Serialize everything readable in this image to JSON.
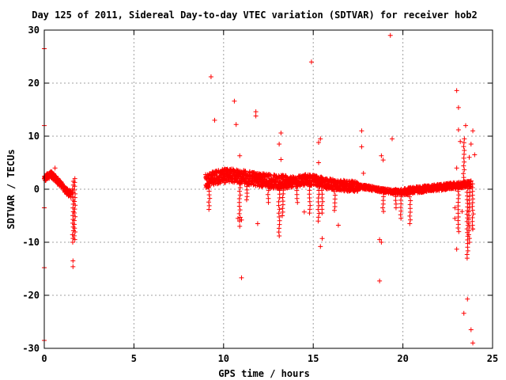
{
  "chart_data": {
    "type": "scatter",
    "title": "Day 125 of 2011, Sidereal Day-to-day VTEC variation (SDTVAR) for receiver hob2",
    "xlabel": "GPS time / hours",
    "ylabel": "SDTVAR / TECUs",
    "xlim": [
      0,
      25
    ],
    "ylim": [
      -30,
      30
    ],
    "xticks": [
      0,
      5,
      10,
      15,
      20,
      25
    ],
    "yticks": [
      -30,
      -20,
      -10,
      0,
      10,
      20,
      30
    ],
    "grid": true,
    "marker": "+",
    "color": "#ff0000",
    "bands": [
      {
        "x": [
          0.0,
          1.5
        ],
        "center": [
          1.8,
          2.5,
          2.8,
          2.2,
          1.5,
          0.8,
          0.0,
          -0.6,
          -1.0
        ],
        "halfwidth": 0.6
      },
      {
        "x": [
          9.0,
          13.5
        ],
        "center": [
          1.5,
          2.2,
          2.5,
          2.6,
          2.4,
          2.0,
          1.8,
          1.6,
          1.4,
          1.3
        ],
        "halfwidth": 1.3
      },
      {
        "x": [
          13.5,
          17.5
        ],
        "center": [
          1.2,
          1.5,
          1.8,
          1.6,
          1.0,
          0.8,
          0.6,
          0.5
        ],
        "halfwidth": 1.0
      },
      {
        "x": [
          17.5,
          20.0
        ],
        "center": [
          0.5,
          0.3,
          0.0,
          -0.3,
          -0.5,
          -0.6
        ],
        "halfwidth": 0.4
      },
      {
        "x": [
          20.0,
          23.8
        ],
        "center": [
          -0.5,
          -0.2,
          0.0,
          0.2,
          0.4,
          0.6,
          0.8,
          1.0
        ],
        "halfwidth": 0.6
      }
    ],
    "spikes": [
      {
        "x": 1.6,
        "y0": 1.5,
        "y1": -10.0
      },
      {
        "x": 1.7,
        "y0": 2.0,
        "y1": -9.5
      },
      {
        "x": 9.2,
        "y0": 1.0,
        "y1": -3.8
      },
      {
        "x": 10.9,
        "y0": 1.0,
        "y1": -6.0
      },
      {
        "x": 11.3,
        "y0": 0.5,
        "y1": -2.0
      },
      {
        "x": 12.5,
        "y0": 0.5,
        "y1": -2.5
      },
      {
        "x": 13.1,
        "y0": 0.5,
        "y1": -8.8
      },
      {
        "x": 13.3,
        "y0": 0.5,
        "y1": -5.0
      },
      {
        "x": 14.1,
        "y0": 0.5,
        "y1": -2.5
      },
      {
        "x": 14.8,
        "y0": 0.5,
        "y1": -4.5
      },
      {
        "x": 15.3,
        "y0": 0.5,
        "y1": -6.0
      },
      {
        "x": 15.5,
        "y0": 0.5,
        "y1": -4.5
      },
      {
        "x": 16.2,
        "y0": 0.3,
        "y1": -4.0
      },
      {
        "x": 18.9,
        "y0": 0.0,
        "y1": -4.2
      },
      {
        "x": 19.6,
        "y0": 0.0,
        "y1": -3.5
      },
      {
        "x": 19.9,
        "y0": 0.0,
        "y1": -5.5
      },
      {
        "x": 20.4,
        "y0": 0.0,
        "y1": -6.5
      },
      {
        "x": 23.1,
        "y0": 1.0,
        "y1": -8.0
      },
      {
        "x": 23.6,
        "y0": 1.5,
        "y1": -13.0
      },
      {
        "x": 23.7,
        "y0": 1.5,
        "y1": -10.0
      },
      {
        "x": 23.9,
        "y0": 1.0,
        "y1": -7.5
      },
      {
        "x": 23.4,
        "y0": 1.5,
        "y1": 9.5
      }
    ],
    "outliers": [
      [
        0.0,
        26.5
      ],
      [
        0.0,
        12.0
      ],
      [
        0.0,
        -3.5
      ],
      [
        0.0,
        -14.8
      ],
      [
        0.0,
        -28.5
      ],
      [
        0.6,
        4.0
      ],
      [
        1.6,
        -13.5
      ],
      [
        1.6,
        -14.6
      ],
      [
        9.3,
        21.2
      ],
      [
        9.5,
        13.0
      ],
      [
        10.6,
        16.6
      ],
      [
        10.7,
        12.2
      ],
      [
        10.9,
        6.3
      ],
      [
        10.8,
        -5.5
      ],
      [
        10.9,
        -7.0
      ],
      [
        11.0,
        -16.7
      ],
      [
        11.0,
        -5.8
      ],
      [
        11.8,
        14.6
      ],
      [
        11.8,
        13.8
      ],
      [
        11.9,
        -6.5
      ],
      [
        13.1,
        8.5
      ],
      [
        13.2,
        10.6
      ],
      [
        13.2,
        5.6
      ],
      [
        14.5,
        -4.3
      ],
      [
        14.9,
        24.0
      ],
      [
        15.3,
        8.8
      ],
      [
        15.4,
        9.5
      ],
      [
        15.5,
        -9.3
      ],
      [
        15.4,
        -10.8
      ],
      [
        15.3,
        5.0
      ],
      [
        16.4,
        -6.8
      ],
      [
        17.7,
        11.0
      ],
      [
        17.7,
        8.0
      ],
      [
        17.8,
        3.0
      ],
      [
        18.8,
        6.3
      ],
      [
        18.9,
        5.5
      ],
      [
        18.7,
        -9.5
      ],
      [
        18.8,
        -10.0
      ],
      [
        18.7,
        -17.3
      ],
      [
        19.3,
        29.0
      ],
      [
        19.4,
        9.5
      ],
      [
        23.0,
        18.6
      ],
      [
        23.1,
        15.4
      ],
      [
        23.1,
        11.2
      ],
      [
        23.2,
        9.0
      ],
      [
        23.0,
        4.0
      ],
      [
        23.5,
        12.0
      ],
      [
        23.8,
        8.5
      ],
      [
        23.9,
        11.0
      ],
      [
        23.7,
        6.0
      ],
      [
        24.0,
        6.5
      ],
      [
        23.0,
        -11.3
      ],
      [
        23.4,
        -23.4
      ],
      [
        23.6,
        -20.7
      ],
      [
        23.8,
        -26.5
      ],
      [
        23.9,
        -29.0
      ],
      [
        23.9,
        -7.5
      ],
      [
        22.9,
        -3.5
      ],
      [
        22.9,
        -5.5
      ],
      [
        23.3,
        -4.2
      ]
    ]
  }
}
